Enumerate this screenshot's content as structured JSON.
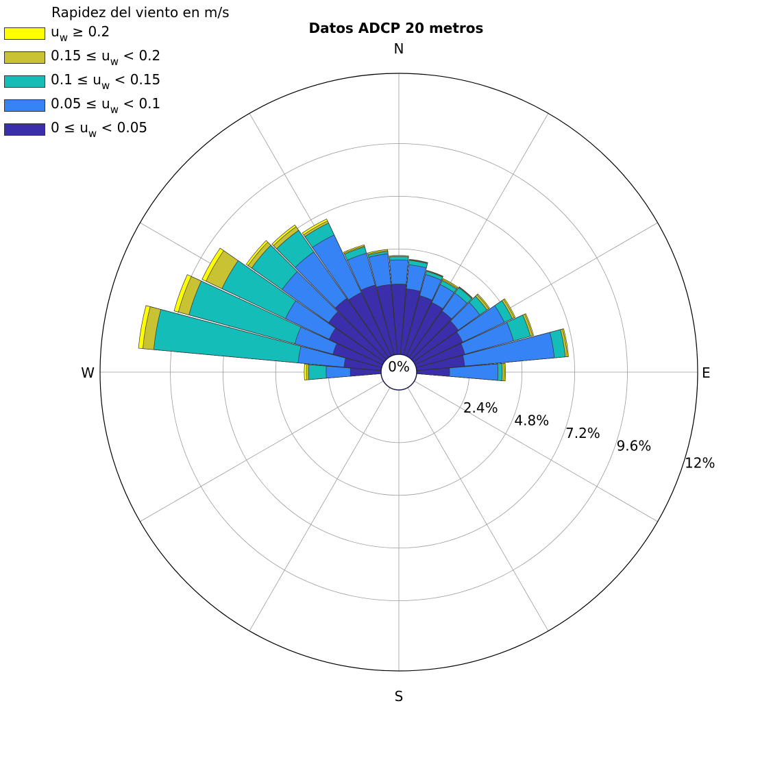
{
  "chart_data": {
    "type": "polar-bar",
    "title": "Datos ADCP 20 metros",
    "direction_labels": {
      "n": "N",
      "e": "E",
      "s": "S",
      "w": "W"
    },
    "radial_ticks": [
      "0%",
      "2.4%",
      "4.8%",
      "7.2%",
      "9.6%",
      "12%"
    ],
    "radial_tick_values": [
      0,
      2.4,
      4.8,
      7.2,
      9.6,
      12
    ],
    "rmax": 12.8,
    "legend": {
      "title": "Rapidez del viento en m/s",
      "placement": "top-left"
    },
    "bins": [
      {
        "label_pre": "u",
        "label_sub": "w",
        "label_post": " ≥ 0.2",
        "lo": 0.2,
        "hi": null,
        "color": "#ffff00"
      },
      {
        "label_pre": "0.15 ≤ u",
        "label_sub": "w",
        "label_post": " < 0.2",
        "lo": 0.15,
        "hi": 0.2,
        "color": "#c9c233"
      },
      {
        "label_pre": "0.1 ≤ u",
        "label_sub": "w",
        "label_post": " < 0.15",
        "lo": 0.1,
        "hi": 0.15,
        "color": "#14bdb8"
      },
      {
        "label_pre": "0.05 ≤ u",
        "label_sub": "w",
        "label_post": " < 0.1",
        "lo": 0.05,
        "hi": 0.1,
        "color": "#3683f5"
      },
      {
        "label_pre": "0 ≤ u",
        "label_sub": "w",
        "label_post": " < 0.05",
        "lo": 0,
        "hi": 0.05,
        "color": "#3b2eab"
      }
    ],
    "sector_width_deg": 10,
    "sectors": [
      {
        "dir": 270,
        "cum": [
          1.4,
          2.5,
          3.3,
          3.4,
          3.5
        ]
      },
      {
        "dir": 280,
        "cum": [
          1.7,
          3.8,
          10.4,
          10.9,
          11.1
        ]
      },
      {
        "dir": 290,
        "cum": [
          2.3,
          4.1,
          9.1,
          9.6,
          9.8
        ]
      },
      {
        "dir": 300,
        "cum": [
          2.7,
          4.9,
          8.1,
          8.9,
          9.1
        ]
      },
      {
        "dir": 310,
        "cum": [
          3.1,
          5.7,
          7.4,
          7.6,
          7.7
        ]
      },
      {
        "dir": 320,
        "cum": [
          3.3,
          5.9,
          7.1,
          7.3,
          7.4
        ]
      },
      {
        "dir": 330,
        "cum": [
          3.2,
          6.1,
          6.7,
          6.8,
          6.9
        ]
      },
      {
        "dir": 340,
        "cum": [
          3.3,
          4.8,
          5.1,
          5.15,
          5.2
        ]
      },
      {
        "dir": 350,
        "cum": [
          3.2,
          4.6,
          4.7,
          4.75,
          4.8
        ]
      },
      {
        "dir": 0,
        "cum": [
          3.2,
          4.3,
          4.45,
          4.5,
          4.5
        ]
      },
      {
        "dir": 10,
        "cum": [
          3.0,
          4.1,
          4.3,
          4.33,
          4.35
        ]
      },
      {
        "dir": 20,
        "cum": [
          2.8,
          3.8,
          3.95,
          3.98,
          4.0
        ]
      },
      {
        "dir": 30,
        "cum": [
          2.7,
          3.6,
          3.8,
          3.85,
          3.9
        ]
      },
      {
        "dir": 40,
        "cum": [
          2.6,
          3.6,
          3.9,
          3.93,
          3.95
        ]
      },
      {
        "dir": 50,
        "cum": [
          2.5,
          3.7,
          4.1,
          4.2,
          4.25
        ]
      },
      {
        "dir": 60,
        "cum": [
          2.4,
          4.5,
          4.9,
          5.0,
          5.05
        ]
      },
      {
        "dir": 70,
        "cum": [
          2.3,
          4.6,
          5.4,
          5.5,
          5.55
        ]
      },
      {
        "dir": 80,
        "cum": [
          2.2,
          6.3,
          6.8,
          6.9,
          6.95
        ]
      },
      {
        "dir": 90,
        "cum": [
          1.5,
          3.7,
          3.9,
          4.0,
          4.05
        ]
      }
    ]
  }
}
